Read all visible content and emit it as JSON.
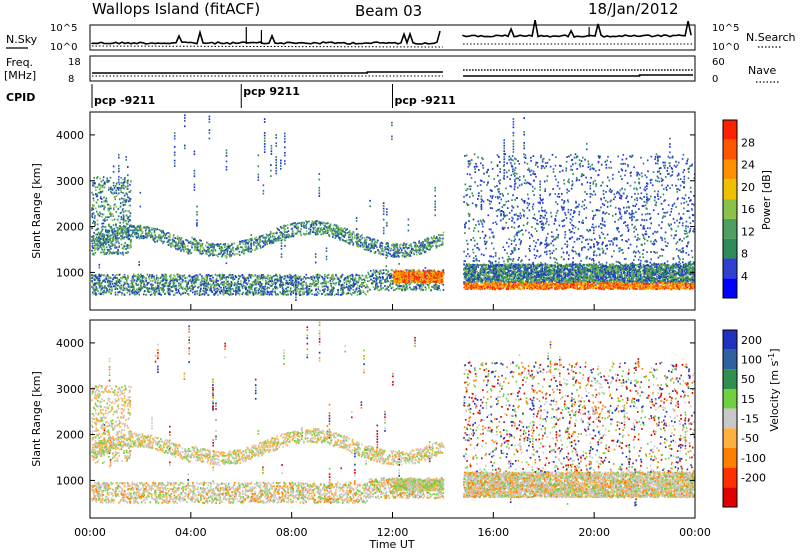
{
  "header": {
    "station": "Wallops Island (fitACF)",
    "beam": "Beam 03",
    "date": "18/Jan/2012"
  },
  "colors": {
    "noise_lines": "#000000",
    "gap_note": "no data between ~14:00 and ~14:50 UT"
  },
  "chart_data": [
    {
      "type": "line",
      "name": "noise-panel",
      "left_label": "N.Sky",
      "right_label": "N.Search",
      "left_ticks": [
        "10^5",
        "10^0"
      ],
      "right_ticks": [
        "10^5",
        "10^0"
      ],
      "x_range_hours": [
        0,
        24
      ],
      "gap_hours": [
        14.0,
        14.8
      ]
    },
    {
      "type": "line",
      "name": "frequency-panel",
      "left_label": "Freq.",
      "left_unit": "[MHz]",
      "left_ticks": [
        "18",
        "8"
      ],
      "right_label": "Nave",
      "right_ticks": [
        "60",
        "0"
      ],
      "gap_hours": [
        14.0,
        14.8
      ]
    },
    {
      "type": "table",
      "name": "cpid-row",
      "label": "CPID",
      "segments": [
        {
          "start_hour": 0,
          "text": "pcp -9211"
        },
        {
          "start_hour": 6,
          "text": "pcp 9211"
        },
        {
          "start_hour": 12,
          "text": "pcp -9211"
        }
      ]
    },
    {
      "type": "heatmap",
      "name": "power-panel",
      "ylabel": "Slant Range [km]",
      "ylim": [
        180,
        4500
      ],
      "yticks": [
        1000,
        2000,
        3000,
        4000
      ],
      "colorbar_label": "Power [dB]",
      "colorbar_ticks": [
        4,
        8,
        12,
        16,
        20,
        24,
        28
      ],
      "colorbar_range": [
        0,
        30
      ],
      "colorbar_colors": [
        "#0000ff",
        "#2f3fd0",
        "#2e8b57",
        "#4fa060",
        "#88c24b",
        "#f0c000",
        "#ff9000",
        "#ff5500",
        "#ff2000"
      ]
    },
    {
      "type": "heatmap",
      "name": "velocity-panel",
      "ylabel": "Slant Range [km]",
      "ylim": [
        180,
        4500
      ],
      "yticks": [
        1000,
        2000,
        3000,
        4000
      ],
      "xlabel": "Time UT",
      "xticks": [
        "00:00",
        "04:00",
        "08:00",
        "12:00",
        "16:00",
        "20:00",
        "00:00"
      ],
      "xtick_hours": [
        0,
        4,
        8,
        12,
        16,
        20,
        24
      ],
      "colorbar_label": "Velocity [m s",
      "colorbar_label_exp": "-1",
      "colorbar_label_end": "]",
      "colorbar_ticks": [
        "200",
        "100",
        "50",
        "15",
        "-15",
        "-50",
        "-100",
        "-200"
      ],
      "colorbar_colors": [
        "#2030c0",
        "#3060a0",
        "#2f8f4f",
        "#70d040",
        "#c8c8c8",
        "#ffb040",
        "#ff8000",
        "#ff3000",
        "#e00000"
      ]
    }
  ]
}
